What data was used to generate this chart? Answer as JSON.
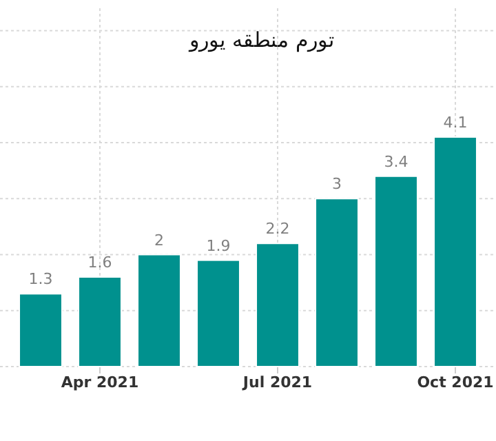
{
  "chart_data": {
    "type": "bar",
    "title": "تورم منطقه یورو",
    "categories": [
      null,
      "Apr 2021",
      null,
      null,
      "Jul 2021",
      null,
      null,
      "Oct 2021"
    ],
    "values": [
      1.3,
      1.6,
      2,
      1.9,
      2.2,
      3,
      3.4,
      4.1
    ],
    "color": "#00918e",
    "ylim": [
      0,
      6.4
    ],
    "yticks": [
      {
        "value": 0,
        "label": null
      },
      {
        "value": 1,
        "label": null
      },
      {
        "value": 2,
        "label": null
      },
      {
        "value": 3,
        "label": null
      },
      {
        "value": 4,
        "label": null
      },
      {
        "value": 5,
        "label": null
      },
      {
        "value": 6,
        "label": null
      }
    ],
    "tick_labels": "x",
    "grid": true,
    "data_labels": true
  }
}
